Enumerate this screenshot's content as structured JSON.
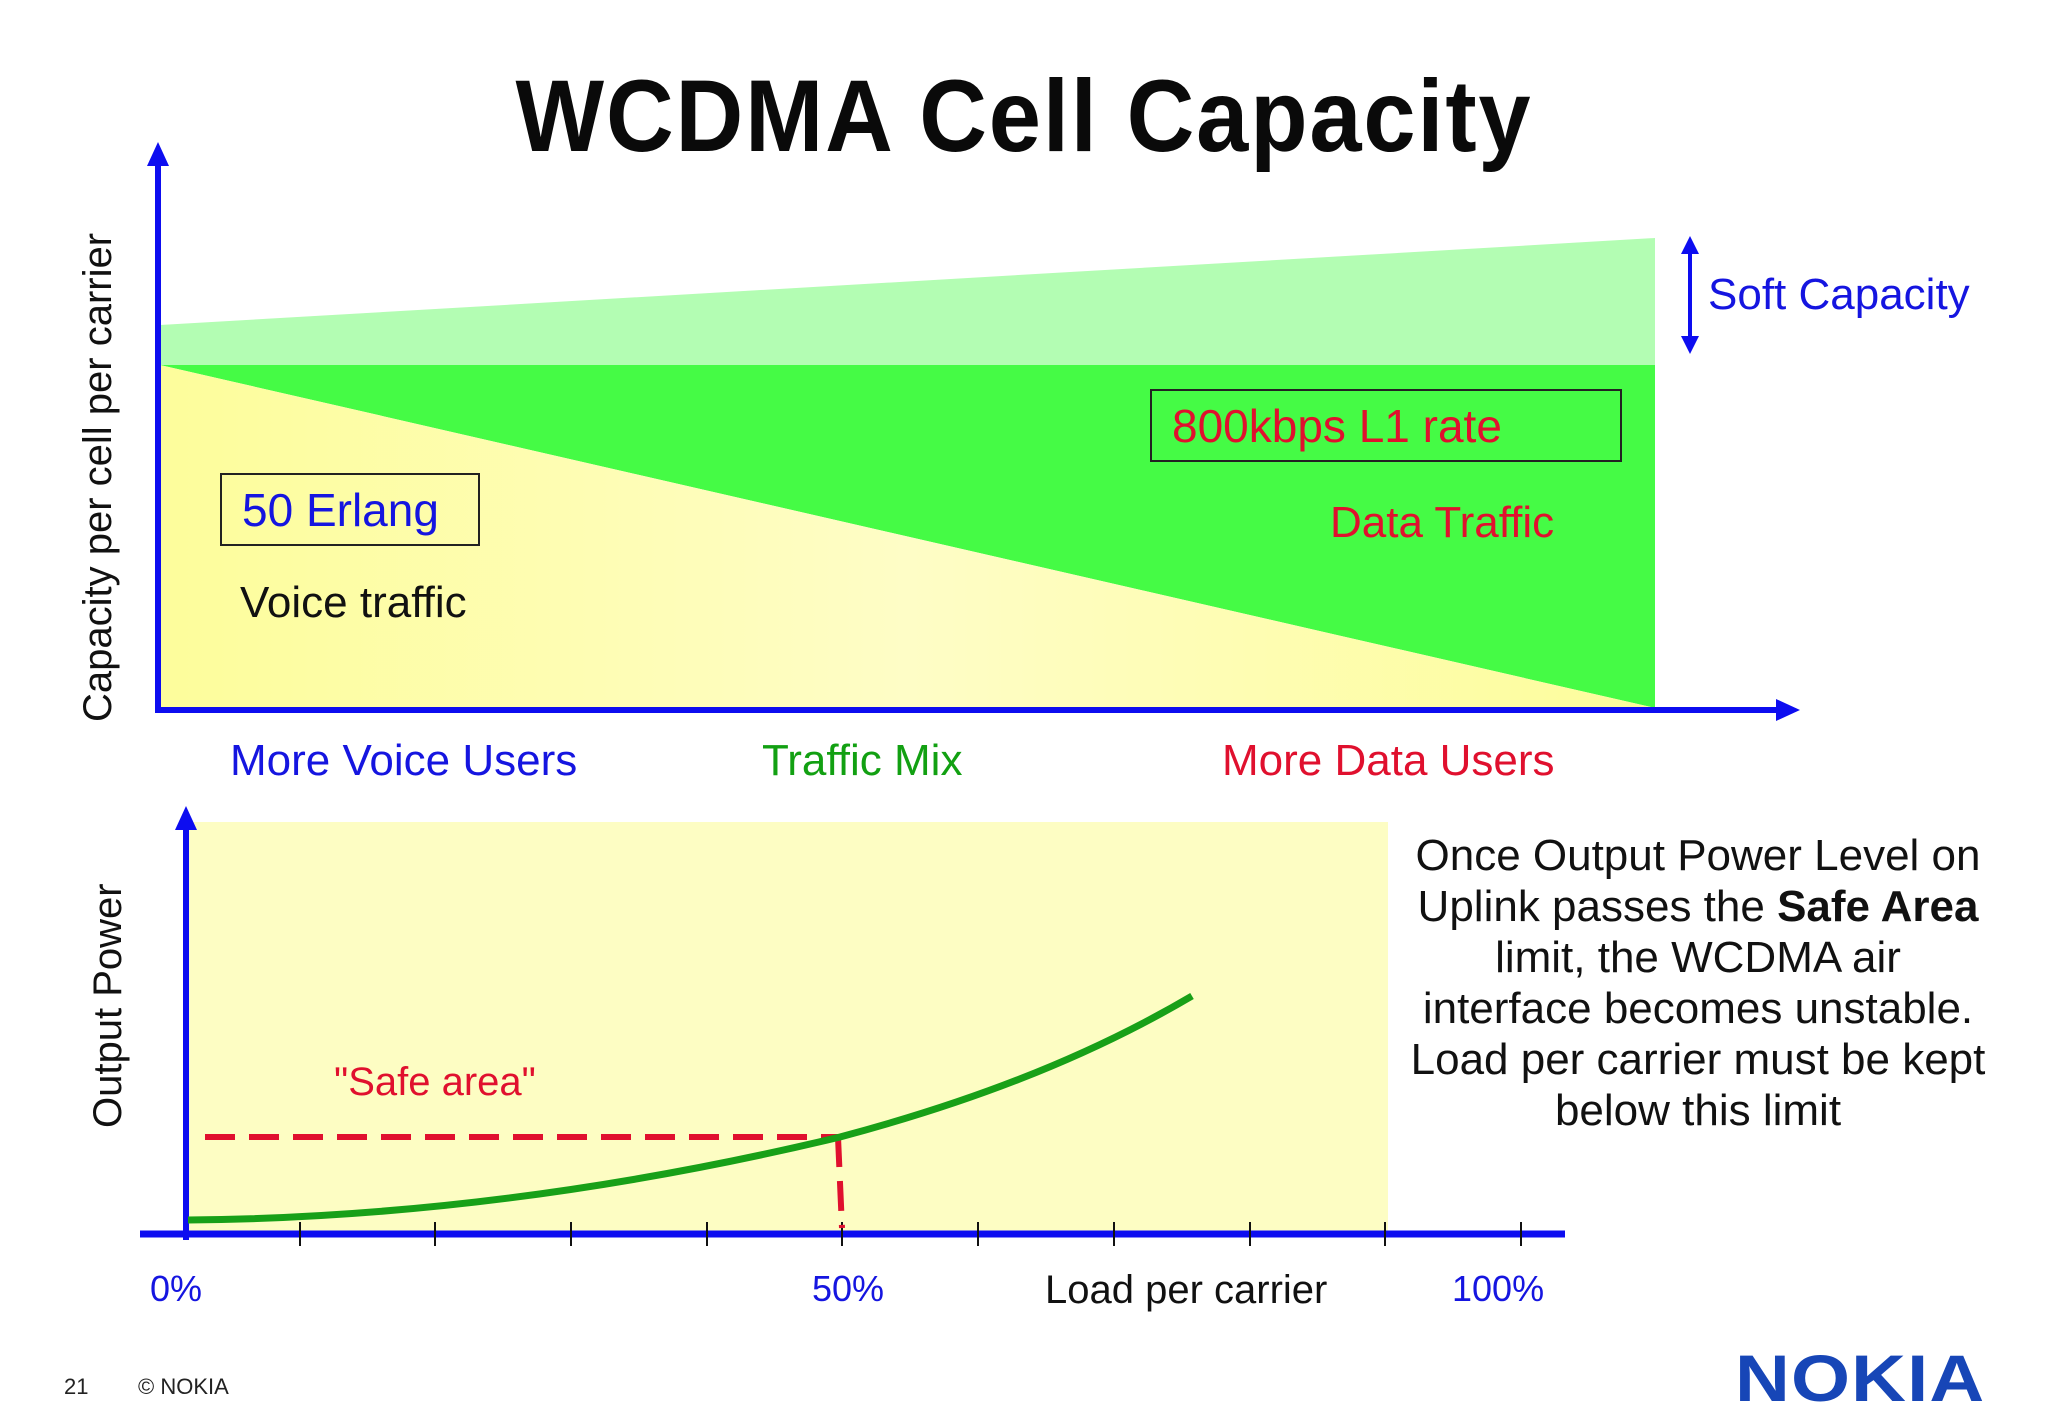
{
  "title": "WCDMA Cell Capacity",
  "top_chart": {
    "y_axis_label": "Capacity per cell per carrier",
    "soft_capacity_label": "Soft Capacity",
    "voice_box_label": "50 Erlang",
    "voice_label": "Voice traffic",
    "data_box_label": "800kbps L1 rate",
    "data_label": "Data Traffic",
    "x_categories": [
      "More Voice Users",
      "Traffic Mix",
      "More Data Users"
    ],
    "colors": {
      "axis": "#0d0df0",
      "soft_capacity": "#b3fdb3",
      "data_traffic": "#45fb45",
      "voice_traffic": "#fdfd99",
      "voice_text": "#1515e0",
      "mix_text": "#12a012",
      "data_text": "#e0102e"
    }
  },
  "bottom_chart": {
    "y_axis_label": "Output Power",
    "x_axis_label": "Load per carrier",
    "tick_labels": [
      "0%",
      "50%",
      "100%"
    ],
    "safe_area_label": "\"Safe area\"",
    "safe_area_threshold_load": 0.5,
    "colors": {
      "curve": "#18a018",
      "safe_line": "#e0102e",
      "background": "#fdfdc3"
    }
  },
  "description": {
    "part1": "Once Output Power Level on Uplink passes the ",
    "bold1": "Safe Area",
    "part2": " limit, the WCDMA air interface becomes unstable. Load per carrier must be kept below  this limit"
  },
  "footer": {
    "page_number": "21",
    "copyright": "© NOKIA",
    "logo": "NOKIA"
  }
}
